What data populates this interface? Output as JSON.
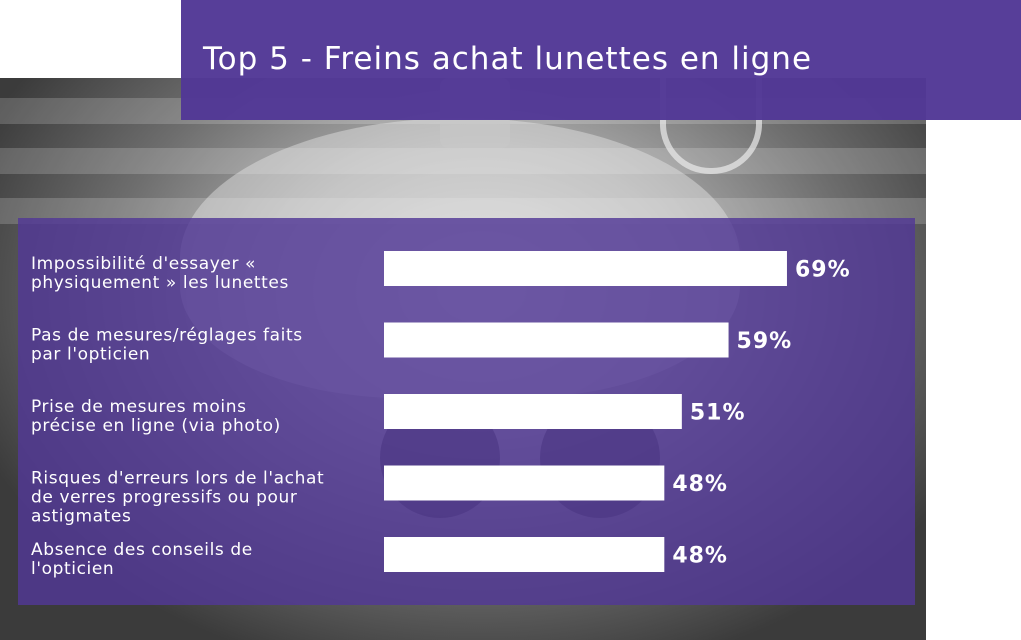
{
  "title": "Top 5 - Freins achat lunettes en ligne",
  "colors": {
    "accent": "#523896",
    "bar": "#ffffff",
    "text": "#ffffff"
  },
  "chart_data": {
    "type": "bar",
    "orientation": "horizontal",
    "title": "Top 5 - Freins achat lunettes en ligne",
    "categories": [
      [
        "Impossibilité d'essayer «",
        "physiquement » les lunettes"
      ],
      [
        "Pas de mesures/réglages faits",
        "par l'opticien"
      ],
      [
        "Prise de mesures moins",
        "précise en ligne (via photo)"
      ],
      [
        "Risques d'erreurs lors de l'achat",
        "de verres progressifs ou pour",
        "astigmates"
      ],
      [
        "Absence des conseils de",
        "l'opticien"
      ]
    ],
    "values": [
      69,
      59,
      51,
      48,
      48
    ],
    "value_labels": [
      "69%",
      "59%",
      "51%",
      "48%",
      "48%"
    ],
    "unit": "%",
    "xlim": [
      0,
      100
    ],
    "grid": false,
    "legend": "none"
  }
}
